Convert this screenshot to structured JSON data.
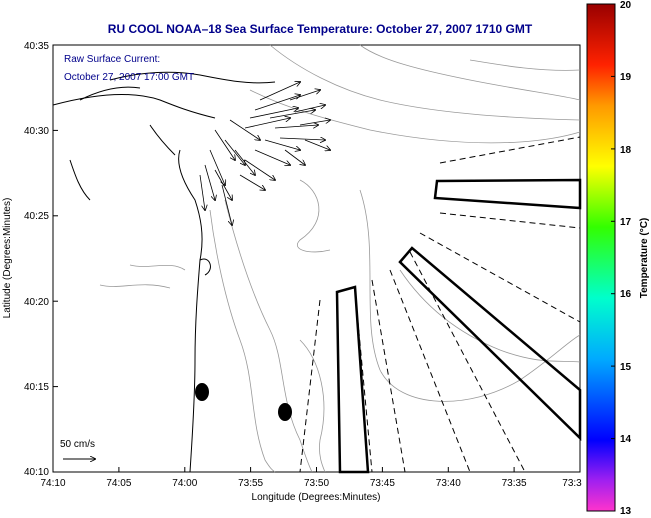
{
  "title": "RU COOL  NOAA–18  Sea Surface Temperature:  October 27, 2007 1710 GMT",
  "annotation": {
    "line1": "Raw Surface Current:",
    "line2": "October 27, 2007 17:00 GMT"
  },
  "axes": {
    "xlabel": "Longitude (Degrees:Minutes)",
    "ylabel": "Latitude (Degrees:Minutes)",
    "x_ticks": [
      "74:10",
      "74:05",
      "74:00",
      "73:55",
      "73:50",
      "73:45",
      "73:40",
      "73:35",
      "73:3"
    ],
    "y_ticks": [
      "40:35",
      "40:30",
      "40:25",
      "40:20",
      "40:15",
      "40:10"
    ]
  },
  "scale": {
    "label": "50 cm/s"
  },
  "colorbar": {
    "label": "Temperature (°C)",
    "ticks": [
      "20",
      "19",
      "18",
      "17",
      "16",
      "15",
      "14",
      "13"
    ]
  },
  "colors": {
    "title_text": "#00008b",
    "annotation_text": "#00008b",
    "bathymetry": "#999999",
    "coastline": "#000000"
  }
}
